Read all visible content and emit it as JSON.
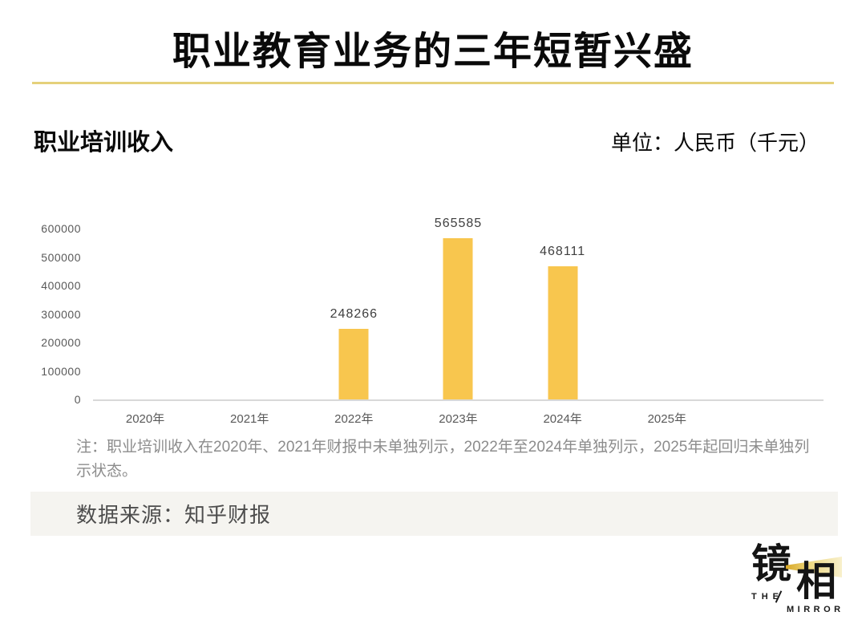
{
  "page": {
    "title": "职业教育业务的三年短暂兴盛",
    "accent_color": "#e5d17b"
  },
  "subtitle": {
    "left": "职业培训收入",
    "right": "单位：人民币（千元）"
  },
  "chart_data": {
    "type": "bar",
    "title": "职业培训收入",
    "unit_label": "单位：人民币（千元）",
    "categories": [
      "2020年",
      "2021年",
      "2022年",
      "2023年",
      "2024年",
      "2025年"
    ],
    "values": [
      null,
      null,
      248266,
      565585,
      468111,
      null
    ],
    "data_labels": [
      "",
      "",
      "248266",
      "565585",
      "468111",
      ""
    ],
    "ylim": [
      0,
      600000
    ],
    "y_ticks": [
      0,
      100000,
      200000,
      300000,
      400000,
      500000,
      600000
    ],
    "grid": false,
    "legend": false,
    "bar_color": "#f8c64e",
    "layout": {
      "extra_empty_slots": 1,
      "axis_line_color": "#d8d8d8"
    }
  },
  "note": {
    "text": "注：职业培训收入在2020年、2021年财报中未单独列示，2022年至2024年单独列示，2025年起回归未单独列示状态。"
  },
  "source": {
    "text": "数据来源：知乎财报"
  },
  "logo": {
    "char_left": "镜",
    "char_right": "相",
    "the": "THE",
    "mirror": "MIRROR",
    "beam_color": "#e9c648"
  }
}
